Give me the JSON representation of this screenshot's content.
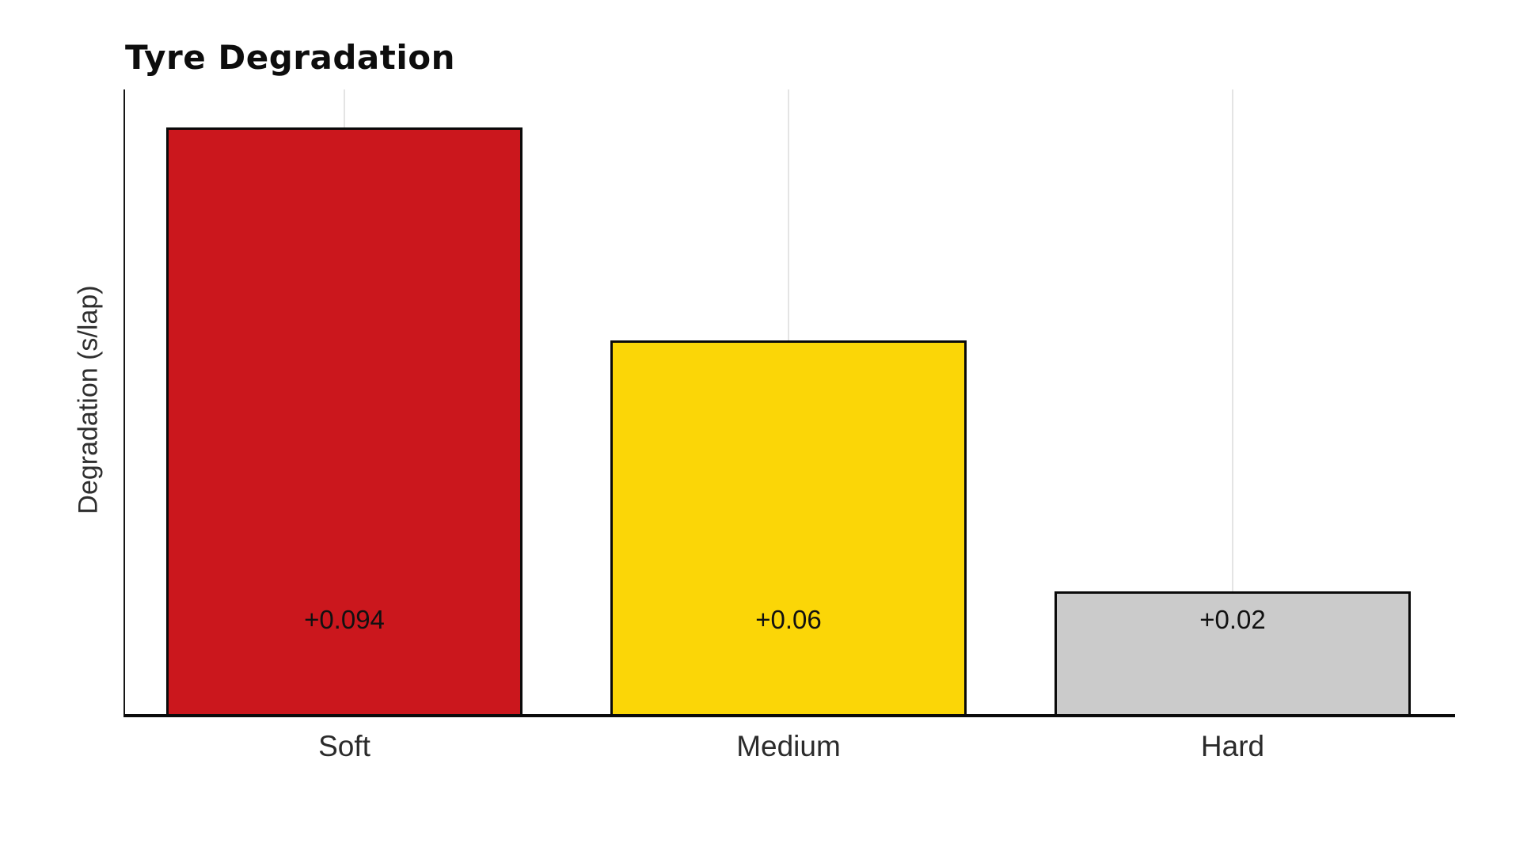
{
  "chart_data": {
    "type": "bar",
    "title": "Tyre Degradation",
    "ylabel": "Degradation (s/lap)",
    "xlabel": "",
    "categories": [
      "Soft",
      "Medium",
      "Hard"
    ],
    "values": [
      0.094,
      0.06,
      0.02
    ],
    "bar_labels": [
      "+0.094",
      "+0.06",
      "+0.02"
    ],
    "bar_colors": [
      "#CB171D",
      "#FBD607",
      "#CBCBCB"
    ],
    "bar_border_color": "#0a0a0a",
    "ylim": [
      0,
      0.1
    ],
    "grid": "faint vertical line at each category center",
    "gridline_color": "#e4e4e4",
    "axis_color": "#0b0b0b",
    "legend": "none",
    "y_tick_labels": []
  }
}
